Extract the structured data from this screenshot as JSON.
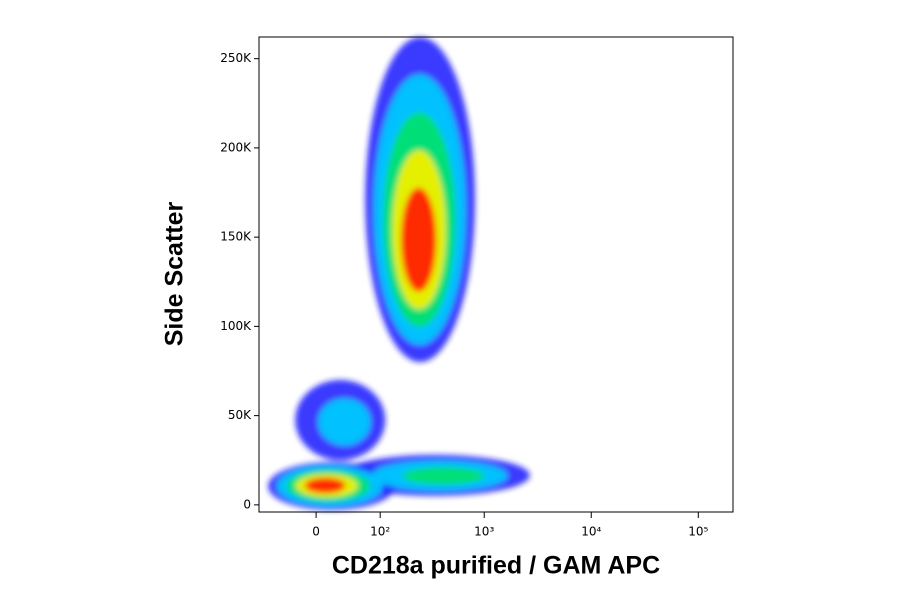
{
  "chart_data": {
    "type": "density",
    "x_label": "CD218a purified / GAM APC",
    "y_label": "Side Scatter",
    "x_scale": "biexponential",
    "xlim": [
      -84,
      211000
    ],
    "xticks": [
      0,
      {
        "value": 100,
        "label": "10²"
      },
      {
        "value": 1000,
        "label": "10³"
      },
      {
        "value": 10000,
        "label": "10⁴"
      },
      {
        "value": 100000,
        "label": "10⁵"
      }
    ],
    "ylim": [
      -4000,
      262144
    ],
    "yticks": [
      0,
      {
        "value": 50000,
        "label": "50K"
      },
      {
        "value": 100000,
        "label": "100K"
      },
      {
        "value": 150000,
        "label": "150K"
      },
      {
        "value": 200000,
        "label": "200K"
      },
      {
        "value": 250000,
        "label": "250K"
      }
    ],
    "colors": [
      "#1a1aff",
      "#00c8ff",
      "#00e070",
      "#f0f000",
      "#ff2000"
    ],
    "populations": [
      {
        "x": [
          29,
          2670
        ],
        "y": [
          5000,
          28000
        ],
        "peak": [
          480,
          16000
        ],
        "levels": 3
      },
      {
        "x": [
          -25,
          113
        ],
        "y": [
          25000,
          70000
        ],
        "peak": [
          43,
          45000
        ],
        "levels": 2
      },
      {
        "x": [
          68,
          820
        ],
        "y": [
          80000,
          262000
        ],
        "peak": [
          238,
          138000
        ],
        "levels": 5
      },
      {
        "x": [
          -66,
          142
        ],
        "y": [
          -3000,
          24000
        ],
        "peak": [
          7,
          11000
        ],
        "levels": 5
      }
    ]
  }
}
